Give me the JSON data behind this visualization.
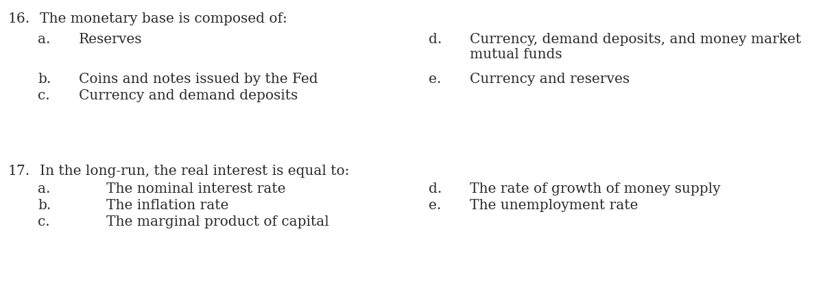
{
  "bg_color": "#ffffff",
  "text_color": "#2a2a2a",
  "q16_number": "16.",
  "q16_question": "The monetary base is composed of:",
  "q16_left_a_letter": "a.",
  "q16_left_a_text": "Reserves",
  "q16_left_bc": [
    [
      "b.",
      "Coins and notes issued by the Fed"
    ],
    [
      "c.",
      "Currency and demand deposits"
    ]
  ],
  "q16_right_d_letter": "d.",
  "q16_right_d_line1": "Currency, demand deposits, and money market",
  "q16_right_d_line2": "mutual funds",
  "q16_right_e_letter": "e.",
  "q16_right_e_text": "Currency and reserves",
  "q17_number": "17.",
  "q17_question": "In the long-run, the real interest is equal to:",
  "q17_left_a_letter": "a.",
  "q17_left_a_text": "The nominal interest rate",
  "q17_left_bc": [
    [
      "b.",
      "The inflation rate"
    ],
    [
      "c.",
      "The marginal product of capital"
    ]
  ],
  "q17_right": [
    [
      "d.",
      "The rate of growth of money supply"
    ],
    [
      "e.",
      "The unemployment rate"
    ]
  ],
  "font_size": 14.5,
  "font_family": "DejaVu Serif"
}
